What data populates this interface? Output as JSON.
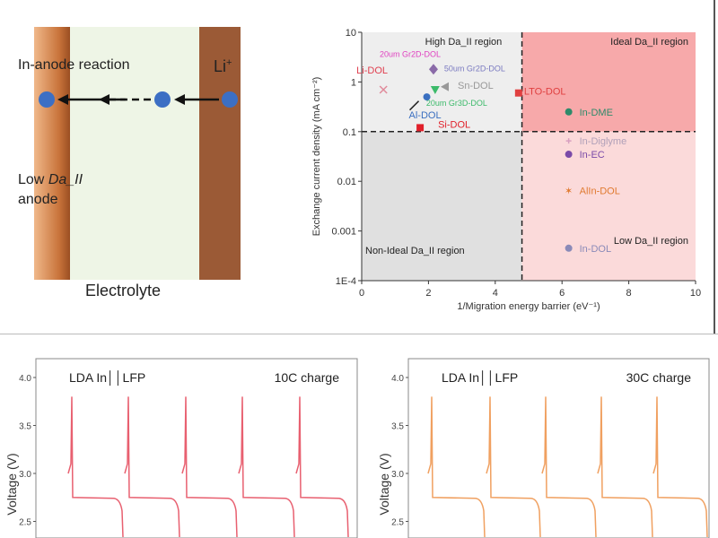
{
  "schematic": {
    "reaction_label": "In-anode reaction",
    "ion_label": "Li",
    "ion_charge": "+",
    "anode_label_line1": "Low",
    "anode_label_italic": "Da_II",
    "anode_label_line2": "anode",
    "electrolyte_label": "Electrolyte",
    "colors": {
      "anode": "#c8733a",
      "electrolyte": "#eef5e6",
      "cathode": "#9b5a36",
      "ion": "#3c6fc4"
    }
  },
  "chart_data": [
    {
      "type": "scatter",
      "xlabel": "1/Migration energy barrier (eV⁻¹)",
      "ylabel": "Exchange current density (mA cm⁻²)",
      "xlim": [
        0,
        10
      ],
      "ylim": [
        0.0001,
        10
      ],
      "yscale": "log",
      "xticks": [
        "0",
        "2",
        "4",
        "6",
        "8",
        "10"
      ],
      "yticks": [
        "1E-4",
        "0.001",
        "0.01",
        "0.1",
        "1",
        "10"
      ],
      "thresholds": {
        "x": 4.8,
        "y": 0.1
      },
      "regions": [
        {
          "label": "High Da_II region",
          "color": "#eeeeee"
        },
        {
          "label": "Ideal Da_II region",
          "color": "#f7a9aa"
        },
        {
          "label": "Non-Ideal Da_II region",
          "color": "#e0e0e0"
        },
        {
          "label": "Low Da_II region",
          "color": "#fbdada"
        }
      ],
      "points": [
        {
          "label": "Li-DOL",
          "x": 0.65,
          "y": 0.7,
          "marker": "x",
          "color": "#e08a9a",
          "label_color": "#e04050"
        },
        {
          "label": "20um Gr2D-DOL",
          "x": 2.15,
          "y": 1.8,
          "marker": "diamond",
          "color": "#8a6aa8",
          "label_color": "#e040c0"
        },
        {
          "label": "50um Gr2D-DOL",
          "x": 2.55,
          "y": 1.5,
          "marker": "none",
          "color": "#7a7ac0",
          "label_color": "#7a7ac0"
        },
        {
          "label": "Sn-DOL",
          "x": 2.5,
          "y": 0.8,
          "marker": "triangle-left",
          "color": "#999999",
          "label_color": "#999999"
        },
        {
          "label": "20um Gr3D-DOL",
          "x": 2.2,
          "y": 0.7,
          "marker": "triangle-down",
          "color": "#3cba6a",
          "label_color": "#3cba6a"
        },
        {
          "label": "Al-DOL",
          "x": 1.95,
          "y": 0.5,
          "marker": "circle",
          "color": "#3a6fc0",
          "label_color": "#3a6fc0"
        },
        {
          "label": "Si-DOL",
          "x": 1.75,
          "y": 0.12,
          "marker": "square",
          "color": "#e0202a",
          "label_color": "#e0202a"
        },
        {
          "label": "LTO-DOL",
          "x": 4.7,
          "y": 0.6,
          "marker": "square",
          "color": "#e04040",
          "label_color": "#e04040"
        },
        {
          "label": "In-DME",
          "x": 6.2,
          "y": 0.25,
          "marker": "circle",
          "color": "#2e8a6a",
          "label_color": "#2e8a6a"
        },
        {
          "label": "In-Diglyme",
          "x": 6.2,
          "y": 0.065,
          "marker": "plus",
          "color": "#d8a0c0",
          "label_color": "#b0a0b8"
        },
        {
          "label": "In-EC",
          "x": 6.2,
          "y": 0.035,
          "marker": "circle",
          "color": "#7a4aa8",
          "label_color": "#7a4aa8"
        },
        {
          "label": "AlIn-DOL",
          "x": 6.2,
          "y": 0.0065,
          "marker": "star",
          "color": "#e07a30",
          "label_color": "#e07a30"
        },
        {
          "label": "In-DOL",
          "x": 6.2,
          "y": 0.00045,
          "marker": "circle",
          "color": "#8a8ab8",
          "label_color": "#8a8ab8"
        }
      ]
    },
    {
      "type": "line",
      "title": "LDA In││LFP",
      "annotation": "10C charge",
      "ylabel": "Voltage (V)",
      "yticks": [
        "4.0",
        "3.5",
        "3.0",
        "2.5"
      ],
      "cycles": 5,
      "plateau_v": 2.75,
      "peak_v": 3.8,
      "color": "#e86070"
    },
    {
      "type": "line",
      "title": "LDA In││LFP",
      "annotation": "30C charge",
      "ylabel": "Voltage (V)",
      "yticks": [
        "4.0",
        "3.5",
        "3.0",
        "2.5"
      ],
      "cycles": 5,
      "plateau_v": 2.75,
      "peak_v": 3.8,
      "color": "#f0a060"
    }
  ]
}
